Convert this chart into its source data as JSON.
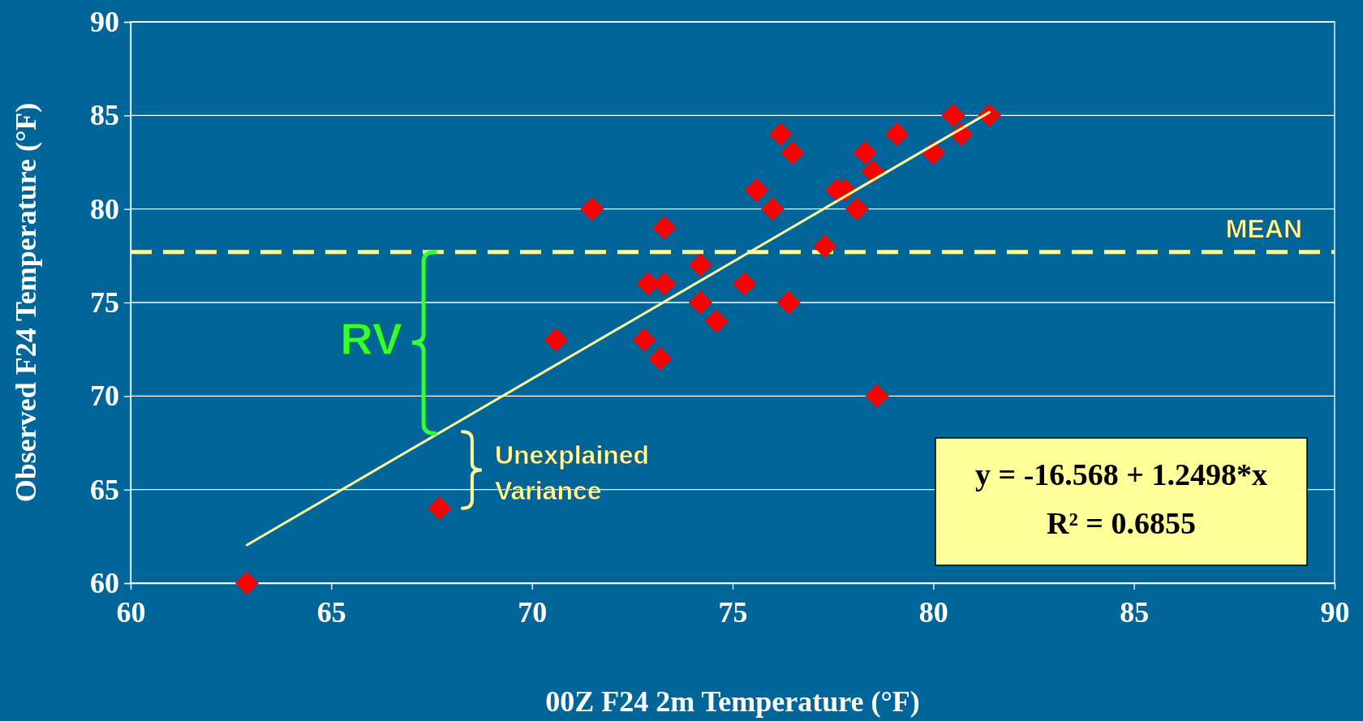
{
  "chart_data": {
    "type": "scatter",
    "xlabel": "00Z F24 2m Temperature (°F)",
    "ylabel": "Observed F24 Temperature (°F)",
    "xlim": [
      60,
      90
    ],
    "ylim": [
      60,
      90
    ],
    "xticks": [
      60,
      65,
      70,
      75,
      80,
      85,
      90
    ],
    "yticks": [
      60,
      65,
      70,
      75,
      80,
      85,
      90
    ],
    "grid": "y",
    "series": [
      {
        "marker": "diamond",
        "color": "#ff0000",
        "x": [
          62.9,
          67.7,
          70.6,
          71.5,
          72.8,
          72.9,
          73.2,
          73.3,
          73.3,
          74.2,
          74.2,
          74.6,
          75.3,
          75.6,
          76.0,
          76.2,
          76.4,
          76.5,
          77.3,
          77.6,
          77.8,
          78.1,
          78.3,
          78.5,
          78.6,
          79.1,
          80.0,
          80.5,
          80.7,
          81.4
        ],
        "values": [
          60,
          64,
          73,
          80,
          73,
          76,
          72,
          76,
          79,
          77,
          75,
          74,
          76,
          81,
          80,
          84,
          75,
          83,
          78,
          81,
          81,
          80,
          83,
          82,
          70,
          84,
          83,
          85,
          84,
          85
        ]
      },
      {
        "type": "line",
        "color": "#ffff99",
        "x": [
          62.9,
          81.4
        ],
        "values": [
          62.04,
          85.17
        ]
      }
    ],
    "ref_lines": [
      {
        "axis": "y",
        "value": 77.7,
        "label": "MEAN",
        "color": "#ffff99",
        "line_style": "dashed"
      }
    ],
    "annotations": [
      "RV",
      "Unexplained Variance",
      "y = -16.568 + 1.2498*x",
      "R² = 0.6855"
    ]
  }
}
